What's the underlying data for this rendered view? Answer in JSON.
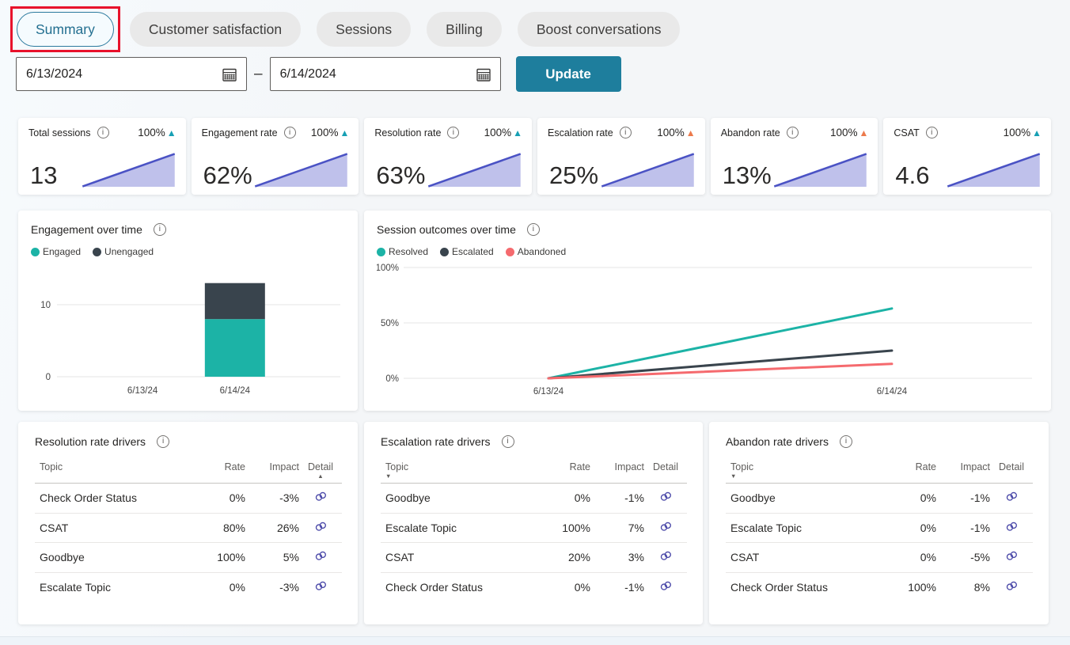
{
  "tabs": {
    "items": [
      {
        "label": "Summary",
        "active": true,
        "annotated": true
      },
      {
        "label": "Customer satisfaction",
        "active": false
      },
      {
        "label": "Sessions",
        "active": false
      },
      {
        "label": "Billing",
        "active": false
      },
      {
        "label": "Boost conversations",
        "active": false
      }
    ]
  },
  "filters": {
    "start_date": "6/13/2024",
    "end_date": "6/14/2024",
    "separator": "–",
    "update_label": "Update"
  },
  "kpis": [
    {
      "label": "Total sessions",
      "value": "13",
      "change": "100%",
      "trend": "up-positive"
    },
    {
      "label": "Engagement rate",
      "value": "62%",
      "change": "100%",
      "trend": "up-positive"
    },
    {
      "label": "Resolution rate",
      "value": "63%",
      "change": "100%",
      "trend": "up-positive"
    },
    {
      "label": "Escalation rate",
      "value": "25%",
      "change": "100%",
      "trend": "up-negative"
    },
    {
      "label": "Abandon rate",
      "value": "13%",
      "change": "100%",
      "trend": "up-negative"
    },
    {
      "label": "CSAT",
      "value": "4.6",
      "change": "100%",
      "trend": "up-positive"
    }
  ],
  "chart_data": [
    {
      "type": "bar",
      "stacked": true,
      "title": "Engagement over time",
      "categories": [
        "6/13/24",
        "6/14/24"
      ],
      "series": [
        {
          "name": "Engaged",
          "color": "#1cb3a6",
          "values": [
            0,
            8
          ]
        },
        {
          "name": "Unengaged",
          "color": "#39444d",
          "values": [
            0,
            5
          ]
        }
      ],
      "yticks": [
        0,
        10
      ],
      "ylim": [
        0,
        14
      ],
      "grid": true,
      "legend_position": "top"
    },
    {
      "type": "line",
      "title": "Session outcomes over time",
      "x": [
        "6/13/24",
        "6/14/24"
      ],
      "series": [
        {
          "name": "Resolved",
          "color": "#1cb3a6",
          "values": [
            0,
            63
          ]
        },
        {
          "name": "Escalated",
          "color": "#39444d",
          "values": [
            0,
            25
          ]
        },
        {
          "name": "Abandoned",
          "color": "#f56a6e",
          "values": [
            0,
            13
          ]
        }
      ],
      "yticks": [
        "0%",
        "50%",
        "100%"
      ],
      "ylim": [
        0,
        100
      ],
      "unit": "%",
      "grid": true,
      "legend_position": "top"
    }
  ],
  "tables": [
    {
      "title": "Resolution rate drivers",
      "columns": [
        "Topic",
        "Rate",
        "Impact",
        "Detail"
      ],
      "sort": {
        "column": "Detail",
        "direction": "asc"
      },
      "rows": [
        {
          "topic": "Check Order Status",
          "rate": "0%",
          "impact": "-3%"
        },
        {
          "topic": "CSAT",
          "rate": "80%",
          "impact": "26%"
        },
        {
          "topic": "Goodbye",
          "rate": "100%",
          "impact": "5%"
        },
        {
          "topic": "Escalate Topic",
          "rate": "0%",
          "impact": "-3%"
        }
      ]
    },
    {
      "title": "Escalation rate drivers",
      "columns": [
        "Topic",
        "Rate",
        "Impact",
        "Detail"
      ],
      "sort": {
        "column": "Topic",
        "direction": "desc"
      },
      "rows": [
        {
          "topic": "Goodbye",
          "rate": "0%",
          "impact": "-1%"
        },
        {
          "topic": "Escalate Topic",
          "rate": "100%",
          "impact": "7%"
        },
        {
          "topic": "CSAT",
          "rate": "20%",
          "impact": "3%"
        },
        {
          "topic": "Check Order Status",
          "rate": "0%",
          "impact": "-1%"
        }
      ]
    },
    {
      "title": "Abandon rate drivers",
      "columns": [
        "Topic",
        "Rate",
        "Impact",
        "Detail"
      ],
      "sort": {
        "column": "Topic",
        "direction": "desc"
      },
      "rows": [
        {
          "topic": "Goodbye",
          "rate": "0%",
          "impact": "-1%"
        },
        {
          "topic": "Escalate Topic",
          "rate": "0%",
          "impact": "-1%"
        },
        {
          "topic": "CSAT",
          "rate": "0%",
          "impact": "-5%"
        },
        {
          "topic": "Check Order Status",
          "rate": "100%",
          "impact": "8%"
        }
      ]
    }
  ],
  "icons": {
    "info": "i",
    "calendar": "calendar-grid",
    "detail_link": "interlocked-rings",
    "sort_asc": "▲",
    "sort_desc": "▼",
    "trend_up": "▲"
  },
  "colors": {
    "trend_positive": "#17a0b4",
    "trend_negative": "#ec7a4c",
    "spark_line": "#4a52c4",
    "spark_fill": "#b8bae9",
    "button": "#1e7e9d",
    "active_tab_border": "#2b7a9e",
    "annotation_red": "#e8112b",
    "link_icon": "#4a48a8"
  }
}
